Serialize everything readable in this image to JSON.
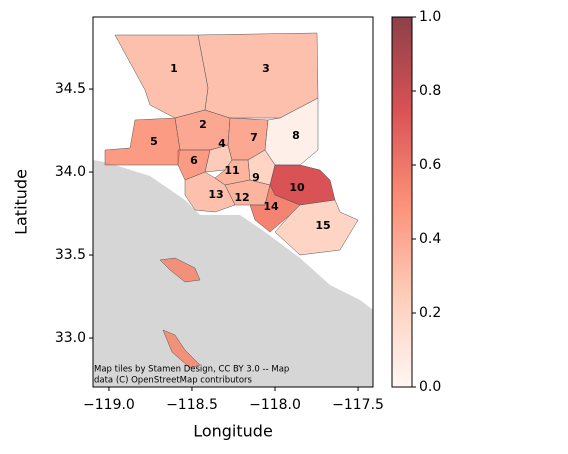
{
  "chart_data": {
    "type": "choropleth",
    "xlabel": "Longitude",
    "ylabel": "Latitude",
    "xlim": [
      -119.096,
      -117.41
    ],
    "ylim": [
      32.705,
      34.934
    ],
    "xticks": [
      {
        "value": -119.0,
        "label": "−119.0"
      },
      {
        "value": -118.5,
        "label": "−118.5"
      },
      {
        "value": -118.0,
        "label": "−118.0"
      },
      {
        "value": -117.5,
        "label": "−117.5"
      }
    ],
    "yticks": [
      {
        "value": 33.0,
        "label": "33.0"
      },
      {
        "value": 33.5,
        "label": "33.5"
      },
      {
        "value": 34.0,
        "label": "34.0"
      },
      {
        "value": 34.5,
        "label": "34.5"
      }
    ],
    "colormap": "Reds",
    "clim": [
      0,
      1
    ],
    "cticks": [
      {
        "value": 0,
        "label": "0.0"
      },
      {
        "value": 0.2,
        "label": "0.2"
      },
      {
        "value": 0.4,
        "label": "0.4"
      },
      {
        "value": 0.6,
        "label": "0.6"
      },
      {
        "value": 0.8,
        "label": "0.8"
      },
      {
        "value": 1,
        "label": "1.0"
      }
    ],
    "regions": [
      "1",
      "2",
      "3",
      "4",
      "5",
      "6",
      "7",
      "8",
      "9",
      "10",
      "11",
      "12",
      "13",
      "14",
      "15"
    ],
    "values": [
      0.3,
      0.4,
      0.3,
      0.25,
      0.45,
      0.45,
      0.4,
      0.05,
      0.2,
      0.75,
      0.35,
      0.35,
      0.3,
      0.55,
      0.2
    ],
    "attribution": [
      "Map tiles by Stamen Design, CC BY 3.0 -- Map",
      "data (C) OpenStreetMap contributors"
    ]
  }
}
